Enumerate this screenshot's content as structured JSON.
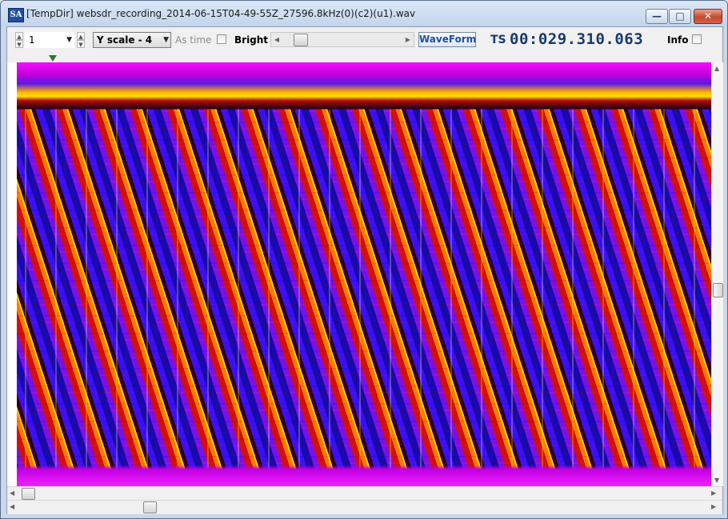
{
  "window": {
    "title": "[TempDir] websdr_recording_2014-06-15T04-49-55Z_27596.8kHz(0)(c2)(u1).wav",
    "app_icon_text": "SA",
    "min_glyph": "—",
    "max_glyph": "□",
    "close_glyph": "✕"
  },
  "toolbar": {
    "channel_value": "1",
    "yscale_value": "Y scale - 4",
    "as_time_label": "As time",
    "bright_label": "Bright",
    "waveform_label": "WaveForm",
    "ts_label": "TS",
    "ts_value": "00:029.310.063",
    "info_label": "Info",
    "as_time_checked": false,
    "info_checked": false
  },
  "colors": {
    "accent_text": "#1a3a6b",
    "waveform_text": "#1d4fa3",
    "marker": "#2a7a2a"
  }
}
